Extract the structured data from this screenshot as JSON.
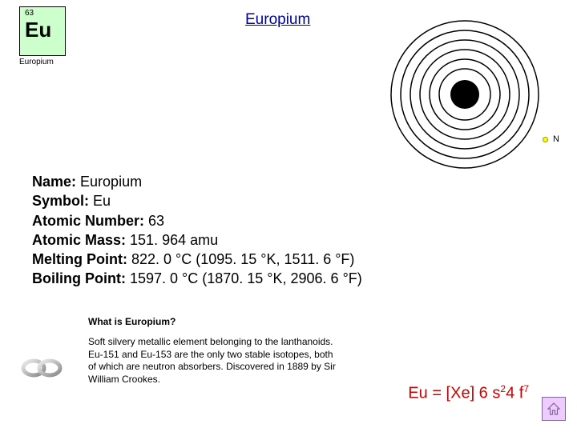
{
  "tile": {
    "atomic_number": "63",
    "symbol": "Eu",
    "name": "Europium",
    "bg_color": "#ccffcc"
  },
  "title": "Europium",
  "legend": {
    "label": "N"
  },
  "facts": [
    {
      "label": "Name:",
      "value": " Europium"
    },
    {
      "label": "Symbol:",
      "value": " Eu"
    },
    {
      "label": "Atomic Number:",
      "value": " 63"
    },
    {
      "label": "Atomic Mass:",
      "value": " 151. 964 amu"
    },
    {
      "label": "Melting Point:",
      "value": " 822. 0 °C (1095. 15 °K, 1511. 6 °F)"
    },
    {
      "label": "Boiling Point:",
      "value": " 1597. 0 °C (1870. 15 °K, 2906. 6 °F)"
    }
  ],
  "subheading": "What is Europium?",
  "description": "Soft silvery metallic element belonging to the lanthanoids. Eu-151 and Eu-153 are the only two stable isotopes, both of which are neutron absorbers. Discovered in 1889 by Sir William Crookes.",
  "econfig": {
    "prefix": "Eu = [Xe] 6 s",
    "sup1": "2",
    "mid": "4 f",
    "sup2": "7"
  },
  "atom": {
    "shell_radii": [
      92,
      80,
      68,
      56,
      44,
      32
    ],
    "nucleus_radius": 18,
    "shell_color": "#000000",
    "nucleus_color": "#000000",
    "electron_fill": "#ffff00",
    "electron_stroke": "#999900"
  },
  "colors": {
    "link": "#000099",
    "accent": "#cc0000",
    "home_border": "#806699",
    "home_bg": "#eeccff"
  }
}
